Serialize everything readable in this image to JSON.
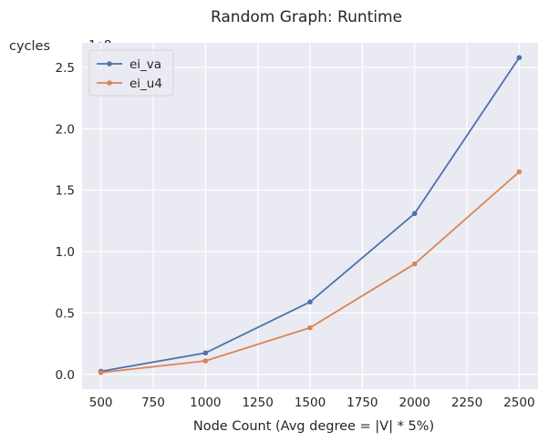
{
  "chart_data": {
    "type": "line",
    "title": "Random Graph: Runtime",
    "xlabel": "Node Count (Avg degree = |V| * 5%)",
    "ylabel": "cycles",
    "y_offset_label": "1e8",
    "x": [
      500,
      1000,
      1500,
      2000,
      2500
    ],
    "series": [
      {
        "name": "ei_va",
        "color": "#4c72b0",
        "values": [
          2500000,
          17500000,
          59000000,
          131000000,
          258000000
        ]
      },
      {
        "name": "ei_u4",
        "color": "#dd8452",
        "values": [
          1500000,
          11000000,
          38000000,
          90000000,
          165000000
        ]
      }
    ],
    "xlim": [
      410,
      2590
    ],
    "ylim": [
      -12000000,
      270000000
    ],
    "x_ticks": [
      500,
      750,
      1000,
      1250,
      1500,
      1750,
      2000,
      2250,
      2500
    ],
    "x_tick_labels": [
      "500",
      "750",
      "1000",
      "1250",
      "1500",
      "1750",
      "2000",
      "2250",
      "2500"
    ],
    "y_ticks": [
      0,
      50000000,
      100000000,
      150000000,
      200000000,
      250000000
    ],
    "y_tick_labels": [
      "0.0",
      "0.5",
      "1.0",
      "1.5",
      "2.0",
      "2.5"
    ],
    "grid": true,
    "legend_position": "top-left",
    "background_color": "#eaeaf2",
    "grid_color": "#ffffff"
  }
}
